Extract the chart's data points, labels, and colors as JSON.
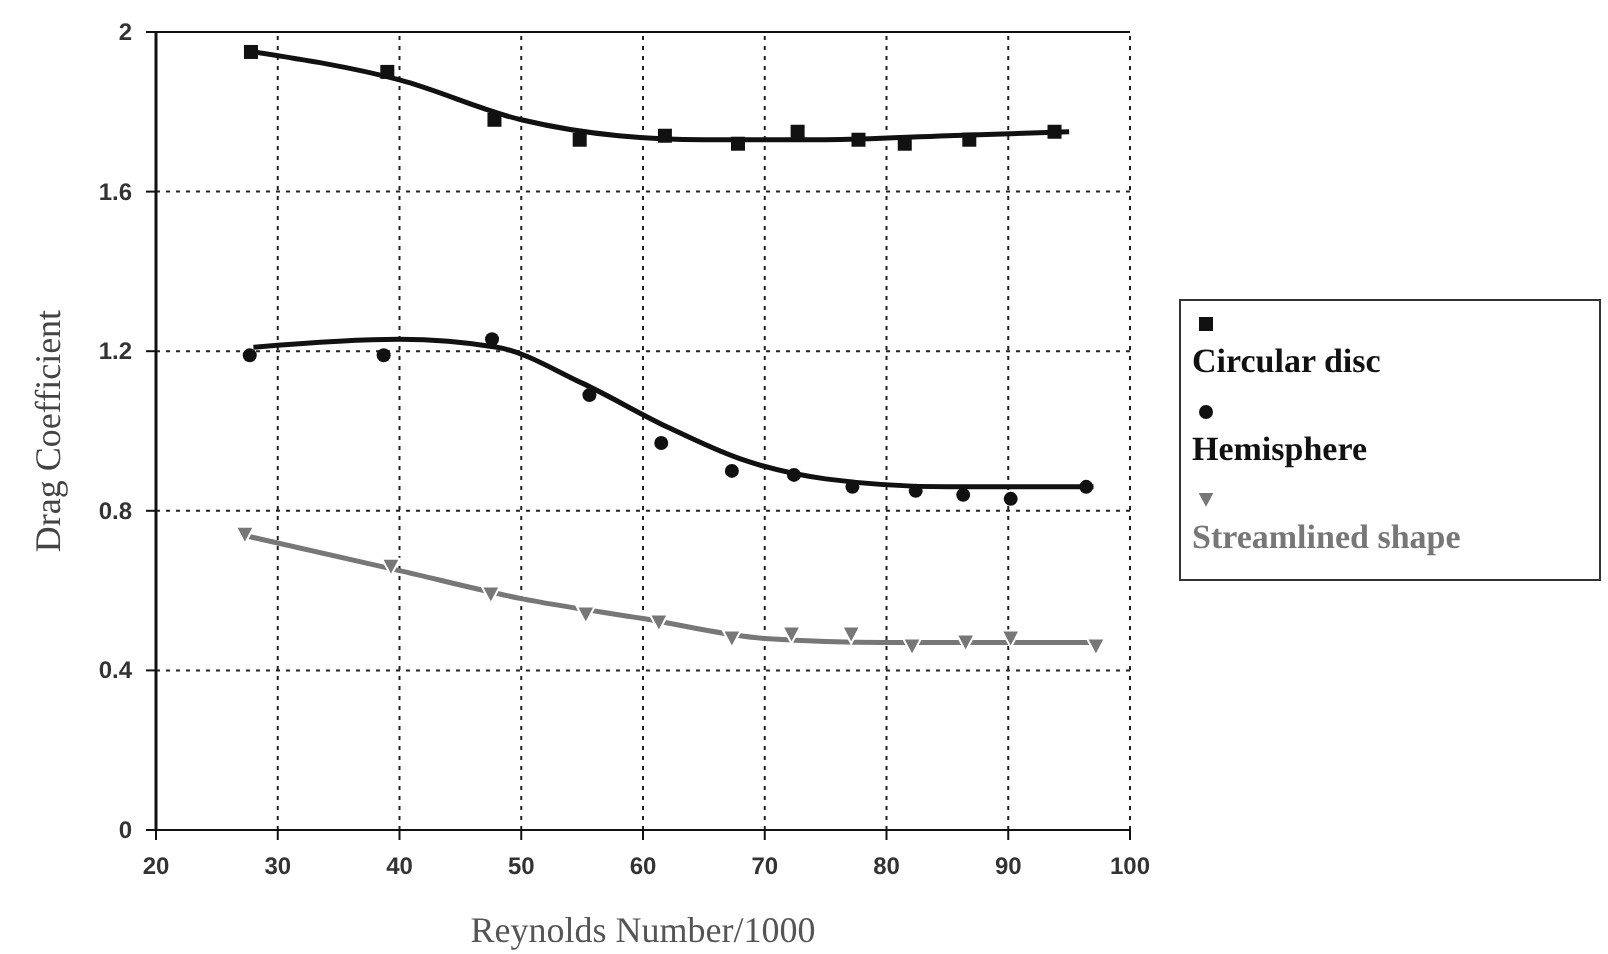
{
  "chart_data": {
    "type": "scatter",
    "xlabel": "Reynolds Number/1000",
    "ylabel": "Drag Coefficient",
    "xlim": [
      20,
      100
    ],
    "xticks": [
      20,
      30,
      40,
      50,
      60,
      70,
      80,
      90,
      100
    ],
    "ylim": [
      0,
      2
    ],
    "yticks": [
      0,
      0.4,
      0.8,
      1.2,
      1.6,
      2
    ],
    "grid": true,
    "legend": "right",
    "series": [
      {
        "name": "Circular disc",
        "color": "#111111",
        "marker": "square",
        "x": [
          27.8,
          39,
          47.8,
          54.8,
          61.8,
          67.8,
          72.7,
          77.7,
          81.5,
          86.8,
          93.8
        ],
        "values": [
          1.95,
          1.9,
          1.78,
          1.73,
          1.74,
          1.72,
          1.75,
          1.73,
          1.72,
          1.73,
          1.75
        ]
      },
      {
        "name": "Hemisphere",
        "color": "#111111",
        "marker": "circle",
        "x": [
          27.7,
          38.7,
          47.6,
          55.6,
          61.5,
          67.3,
          72.4,
          77.2,
          82.4,
          86.3,
          90.2,
          96.4
        ],
        "values": [
          1.19,
          1.19,
          1.23,
          1.09,
          0.97,
          0.9,
          0.89,
          0.86,
          0.85,
          0.84,
          0.83,
          0.86
        ]
      },
      {
        "name": "Streamlined shape",
        "color": "#777777",
        "marker": "triangle",
        "x": [
          27.3,
          39.3,
          47.5,
          55.3,
          61.3,
          67.3,
          72.2,
          77.1,
          82.1,
          86.5,
          90.2,
          97.2
        ],
        "values": [
          0.74,
          0.66,
          0.59,
          0.54,
          0.52,
          0.48,
          0.49,
          0.49,
          0.46,
          0.47,
          0.48,
          0.46
        ]
      },
      {
        "type": "line",
        "color": "#111111",
        "marker": "none",
        "x": [
          28,
          40,
          50,
          58,
          65,
          75,
          85,
          95
        ],
        "values": [
          1.95,
          1.88,
          1.78,
          1.74,
          1.73,
          1.73,
          1.74,
          1.75
        ]
      },
      {
        "type": "line",
        "color": "#111111",
        "marker": "none",
        "x": [
          28,
          40,
          48,
          55,
          62,
          68,
          75,
          85,
          97
        ],
        "values": [
          1.21,
          1.23,
          1.21,
          1.12,
          1.01,
          0.93,
          0.88,
          0.86,
          0.86
        ]
      },
      {
        "type": "line",
        "color": "#777777",
        "marker": "none",
        "x": [
          27,
          40,
          50,
          60,
          70,
          80,
          97
        ],
        "values": [
          0.74,
          0.65,
          0.58,
          0.53,
          0.48,
          0.47,
          0.47
        ]
      }
    ]
  }
}
